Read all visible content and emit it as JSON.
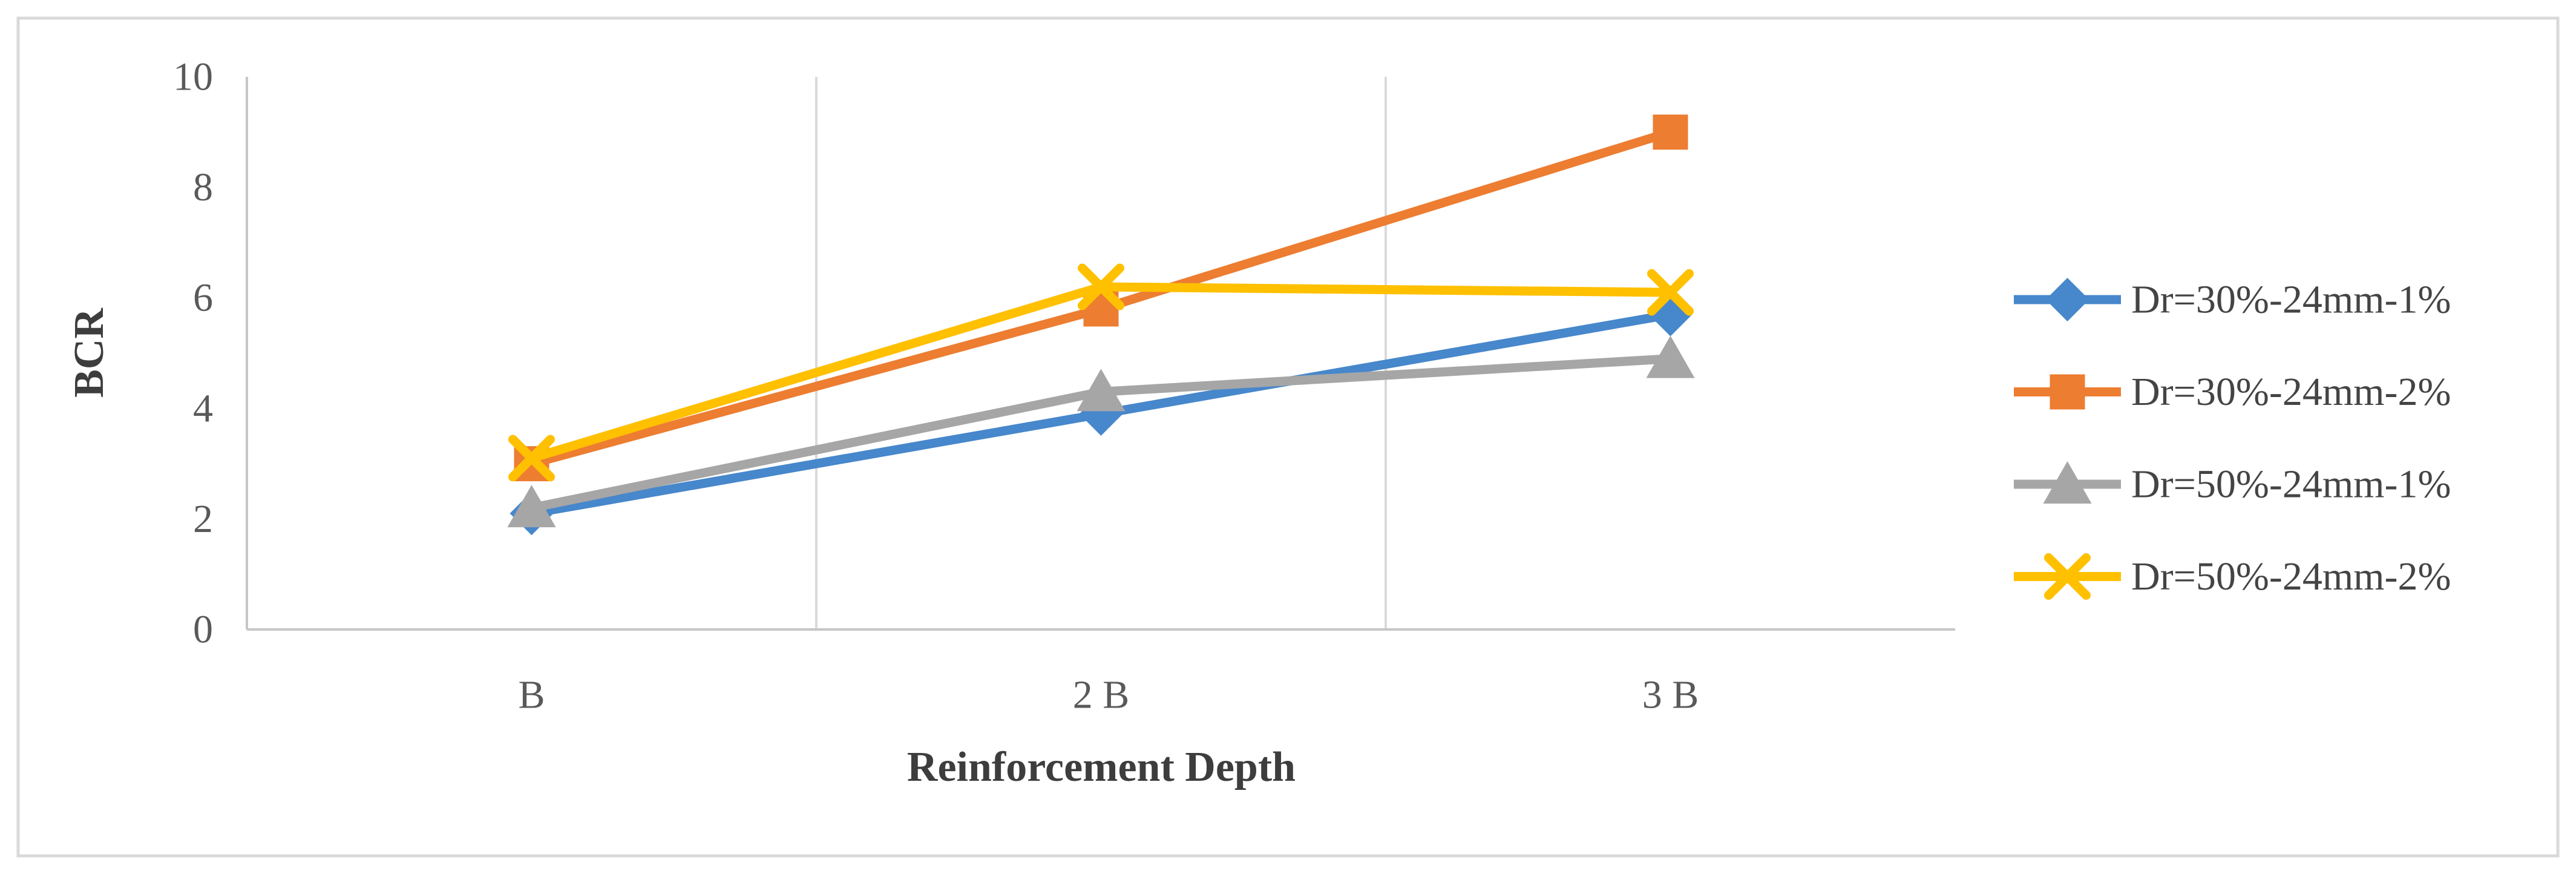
{
  "figure": {
    "background": "#ffffff",
    "border_color": "#d9d9d9"
  },
  "chart_data": {
    "type": "line",
    "title": "",
    "xlabel": "Reinforcement Depth",
    "ylabel": "BCR",
    "categories": [
      "B",
      "2 B",
      "3 B"
    ],
    "y_ticks": [
      0,
      2,
      4,
      6,
      8,
      10
    ],
    "ylim": [
      0,
      10
    ],
    "grid": "vertical gridlines at category boundaries",
    "legend_position": "right",
    "series": [
      {
        "name": "Dr=30%-24mm-1%",
        "color": "#4787CB",
        "marker": "diamond",
        "values": [
          2.1,
          3.9,
          5.7
        ]
      },
      {
        "name": "Dr=30%-24mm-2%",
        "color": "#ED7D31",
        "marker": "square",
        "values": [
          3.0,
          5.8,
          9.0
        ]
      },
      {
        "name": "Dr=50%-24mm-1%",
        "color": "#A6A6A6",
        "marker": "triangle",
        "values": [
          2.2,
          4.3,
          4.9
        ]
      },
      {
        "name": "Dr=50%-24mm-2%",
        "color": "#FFC000",
        "marker": "x",
        "values": [
          3.1,
          6.2,
          6.1
        ]
      }
    ]
  },
  "style_colors": {
    "gridline": "#d9d9d9",
    "axis_line": "#c6c6c6",
    "tick_text": "#595959",
    "title_text": "#3d3d3d"
  }
}
